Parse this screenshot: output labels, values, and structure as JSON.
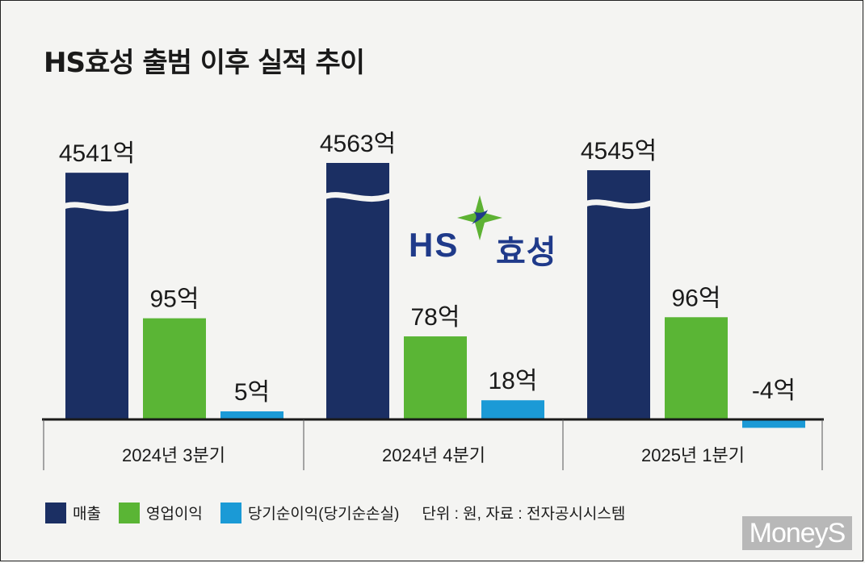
{
  "title": "HS효성 출범 이후 실적 추이",
  "logo": {
    "hs": "HS",
    "hyosung": "효성",
    "colors": [
      "#1f3a8a",
      "#5db233"
    ]
  },
  "watermark": "MoneyS",
  "legend": {
    "items": [
      {
        "label": "매출",
        "color": "#1b2f63"
      },
      {
        "label": "영업이익",
        "color": "#5ab535"
      },
      {
        "label": "당기순이익(당기순손실)",
        "color": "#1b9ad6"
      }
    ],
    "unit_note": "단위 : 원, 자료 : 전자공시시스템"
  },
  "chart_data": {
    "type": "bar",
    "categories": [
      "2024년 3분기",
      "2024년 4분기",
      "2025년 1분기"
    ],
    "series": [
      {
        "name": "매출",
        "values": [
          4541,
          4563,
          4545
        ],
        "labels": [
          "4541억",
          "4563억",
          "4545억"
        ],
        "color": "#1b2f63",
        "axis_break": true
      },
      {
        "name": "영업이익",
        "values": [
          95,
          78,
          96
        ],
        "labels": [
          "95억",
          "78억",
          "96억"
        ],
        "color": "#5ab535"
      },
      {
        "name": "당기순이익(당기순손실)",
        "values": [
          5,
          18,
          -4
        ],
        "labels": [
          "5억",
          "18억",
          "-4억"
        ],
        "color": "#1b9ad6"
      }
    ],
    "unit": "억원",
    "grid": false,
    "legend_position": "bottom-left"
  }
}
